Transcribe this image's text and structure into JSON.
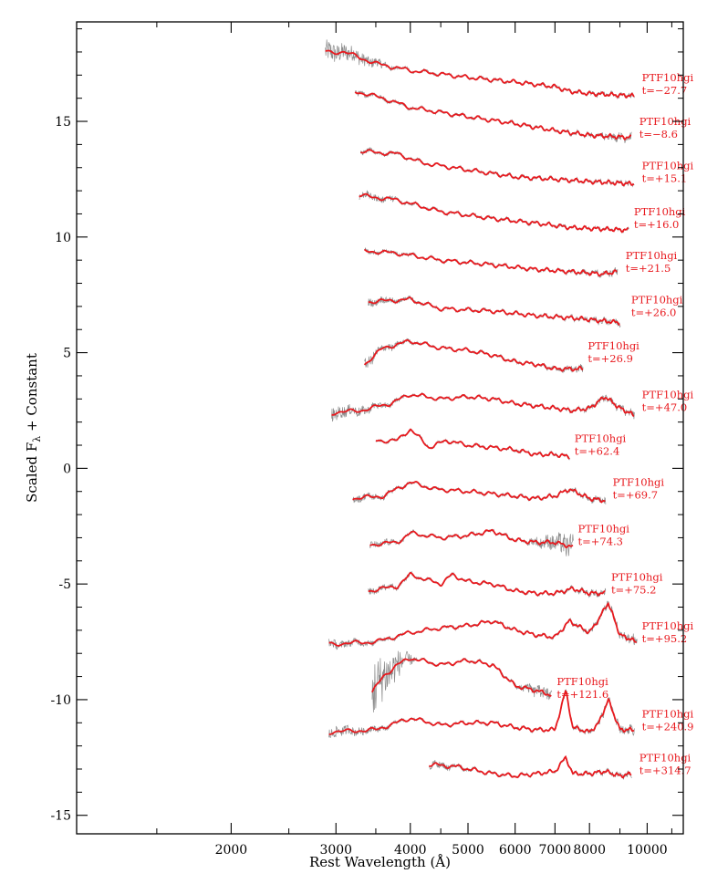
{
  "chart_data": {
    "type": "line",
    "title": "",
    "xlabel": "Rest Wavelength (Å)",
    "ylabel": "Scaled F",
    "ylabel_sub": "λ",
    "ylabel_suffix": " + Constant",
    "xscale": "log",
    "xlim": [
      1100,
      11500
    ],
    "ylim": [
      -15.8,
      19.3
    ],
    "x_ticks": [
      {
        "value": 2000,
        "label": "2000"
      },
      {
        "value": 3000,
        "label": "3000"
      },
      {
        "value": 4000,
        "label": "4000"
      },
      {
        "value": 5000,
        "label": "5000"
      },
      {
        "value": 6000,
        "label": "6000"
      },
      {
        "value": 7000,
        "label": "7000"
      },
      {
        "value": 8000,
        "label": "8000"
      },
      {
        "value": 10000,
        "label": "10000"
      }
    ],
    "y_ticks": [
      {
        "value": 15,
        "label": "15"
      },
      {
        "value": 10,
        "label": "10"
      },
      {
        "value": 5,
        "label": "5"
      },
      {
        "value": 0,
        "label": "0"
      },
      {
        "value": -5,
        "label": "-5"
      },
      {
        "value": -10,
        "label": "-10"
      },
      {
        "value": -15,
        "label": "-15"
      }
    ],
    "raw_color": "#8c8c8c",
    "smooth_color": "#e8191e",
    "series": [
      {
        "object": "PTF10hgi",
        "epoch": "t=−27.7",
        "wmin": 2880,
        "wmax": 9500,
        "noise_lo": 0.45,
        "noise_hi": 0.05,
        "points": [
          [
            2880,
            18.0
          ],
          [
            3100,
            18.0
          ],
          [
            3500,
            17.5
          ],
          [
            4000,
            17.2
          ],
          [
            5000,
            16.9
          ],
          [
            6000,
            16.7
          ],
          [
            7000,
            16.5
          ],
          [
            7400,
            16.3
          ],
          [
            8000,
            16.2
          ],
          [
            9500,
            16.1
          ]
        ],
        "label_w": 9800,
        "label_y": 16.5
      },
      {
        "object": "PTF10hgi",
        "epoch": "t=−8.6",
        "wmin": 3230,
        "wmax": 9400,
        "noise_lo": 0.06,
        "noise_hi": 0.12,
        "points": [
          [
            3230,
            16.3
          ],
          [
            3600,
            16.0
          ],
          [
            4000,
            15.6
          ],
          [
            5000,
            15.2
          ],
          [
            6000,
            14.9
          ],
          [
            7000,
            14.6
          ],
          [
            8000,
            14.4
          ],
          [
            9400,
            14.3
          ]
        ],
        "label_w": 9700,
        "label_y": 14.6
      },
      {
        "object": "PTF10hgi",
        "epoch": "t=+15.1",
        "wmin": 3300,
        "wmax": 9500,
        "noise_lo": 0.05,
        "noise_hi": 0.05,
        "points": [
          [
            3300,
            13.7
          ],
          [
            3800,
            13.6
          ],
          [
            4200,
            13.2
          ],
          [
            5000,
            12.9
          ],
          [
            6000,
            12.6
          ],
          [
            7000,
            12.5
          ],
          [
            8000,
            12.4
          ],
          [
            9500,
            12.3
          ]
        ],
        "label_w": 9800,
        "label_y": 12.7
      },
      {
        "object": "PTF10hgi",
        "epoch": "t=+16.0",
        "wmin": 3280,
        "wmax": 9300,
        "noise_lo": 0.12,
        "noise_hi": 0.0,
        "points": [
          [
            3280,
            11.8
          ],
          [
            3800,
            11.6
          ],
          [
            4500,
            11.1
          ],
          [
            5500,
            10.8
          ],
          [
            6500,
            10.6
          ],
          [
            7500,
            10.4
          ],
          [
            9300,
            10.3
          ]
        ],
        "label_w": 9500,
        "label_y": 10.7
      },
      {
        "object": "PTF10hgi",
        "epoch": "t=+21.5",
        "wmin": 3350,
        "wmax": 8900,
        "noise_lo": 0.06,
        "noise_hi": 0.1,
        "points": [
          [
            3350,
            9.4
          ],
          [
            3800,
            9.3
          ],
          [
            4500,
            9.0
          ],
          [
            5500,
            8.8
          ],
          [
            6500,
            8.6
          ],
          [
            7500,
            8.5
          ],
          [
            8400,
            8.4
          ],
          [
            8900,
            8.5
          ]
        ],
        "label_w": 9200,
        "label_y": 8.8
      },
      {
        "object": "PTF10hgi",
        "epoch": "t=+26.0",
        "wmin": 3400,
        "wmax": 9000,
        "noise_lo": 0.12,
        "noise_hi": 0.1,
        "points": [
          [
            3400,
            7.2
          ],
          [
            4000,
            7.3
          ],
          [
            4500,
            6.9
          ],
          [
            5500,
            6.8
          ],
          [
            6500,
            6.6
          ],
          [
            7500,
            6.5
          ],
          [
            9000,
            6.3
          ]
        ],
        "label_w": 9400,
        "label_y": 6.9
      },
      {
        "object": "PTF10hgi",
        "epoch": "t=+26.9",
        "wmin": 3350,
        "wmax": 7800,
        "noise_lo": 0.2,
        "noise_hi": 0.1,
        "points": [
          [
            3350,
            4.5
          ],
          [
            3600,
            5.2
          ],
          [
            4000,
            5.5
          ],
          [
            4500,
            5.2
          ],
          [
            5000,
            5.1
          ],
          [
            5500,
            4.9
          ],
          [
            6000,
            4.6
          ],
          [
            6500,
            4.5
          ],
          [
            7000,
            4.3
          ],
          [
            7800,
            4.3
          ]
        ],
        "label_w": 7950,
        "label_y": 4.9
      },
      {
        "object": "PTF10hgi",
        "epoch": "t=+47.0",
        "wmin": 2950,
        "wmax": 9500,
        "noise_lo": 0.25,
        "noise_hi": 0.12,
        "points": [
          [
            2950,
            2.4
          ],
          [
            3300,
            2.5
          ],
          [
            3700,
            2.8
          ],
          [
            4000,
            3.2
          ],
          [
            4500,
            3.0
          ],
          [
            5000,
            3.1
          ],
          [
            5500,
            3.0
          ],
          [
            6000,
            2.8
          ],
          [
            6500,
            2.7
          ],
          [
            7000,
            2.6
          ],
          [
            7500,
            2.5
          ],
          [
            8000,
            2.6
          ],
          [
            8500,
            3.1
          ],
          [
            9000,
            2.6
          ],
          [
            9500,
            2.3
          ]
        ],
        "label_w": 9800,
        "label_y": 2.8
      },
      {
        "object": "PTF10hgi",
        "epoch": "t=+62.4",
        "wmin": 3500,
        "wmax": 7400,
        "noise_lo": 0.0,
        "noise_hi": 0.0,
        "points": [
          [
            3500,
            1.2
          ],
          [
            3800,
            1.2
          ],
          [
            4000,
            1.7
          ],
          [
            4300,
            0.9
          ],
          [
            4600,
            1.2
          ],
          [
            5000,
            1.0
          ],
          [
            5500,
            0.9
          ],
          [
            6000,
            0.8
          ],
          [
            6500,
            0.6
          ],
          [
            7000,
            0.6
          ],
          [
            7400,
            0.5
          ]
        ],
        "label_w": 7550,
        "label_y": 0.9
      },
      {
        "object": "PTF10hgi",
        "epoch": "t=+69.7",
        "wmin": 3200,
        "wmax": 8500,
        "noise_lo": 0.12,
        "noise_hi": 0.1,
        "points": [
          [
            3200,
            -1.3
          ],
          [
            3600,
            -1.2
          ],
          [
            4000,
            -0.6
          ],
          [
            4400,
            -0.9
          ],
          [
            5000,
            -1.0
          ],
          [
            5500,
            -1.1
          ],
          [
            6000,
            -1.2
          ],
          [
            6500,
            -1.3
          ],
          [
            7000,
            -1.2
          ],
          [
            7400,
            -0.9
          ],
          [
            8000,
            -1.3
          ],
          [
            8500,
            -1.4
          ]
        ],
        "label_w": 8750,
        "label_y": -1.0
      },
      {
        "object": "PTF10hgi",
        "epoch": "t=+74.3",
        "wmin": 3420,
        "wmax": 7500,
        "noise_lo": 0.12,
        "noise_hi": 0.5,
        "points": [
          [
            3420,
            -3.3
          ],
          [
            3800,
            -3.2
          ],
          [
            4000,
            -2.8
          ],
          [
            4500,
            -3.0
          ],
          [
            5000,
            -2.9
          ],
          [
            5500,
            -2.7
          ],
          [
            6000,
            -3.1
          ],
          [
            6500,
            -3.2
          ],
          [
            7000,
            -3.2
          ],
          [
            7500,
            -3.4
          ]
        ],
        "label_w": 7650,
        "label_y": -3.0
      },
      {
        "object": "PTF10hgi",
        "epoch": "t=+75.2",
        "wmin": 3400,
        "wmax": 8500,
        "noise_lo": 0.1,
        "noise_hi": 0.1,
        "points": [
          [
            3400,
            -5.3
          ],
          [
            3800,
            -5.1
          ],
          [
            4000,
            -4.6
          ],
          [
            4500,
            -5.0
          ],
          [
            4700,
            -4.6
          ],
          [
            5000,
            -4.9
          ],
          [
            5500,
            -5.0
          ],
          [
            6000,
            -5.3
          ],
          [
            6500,
            -5.4
          ],
          [
            7000,
            -5.4
          ],
          [
            7500,
            -5.2
          ],
          [
            8000,
            -5.4
          ],
          [
            8500,
            -5.4
          ]
        ],
        "label_w": 8700,
        "label_y": -5.1
      },
      {
        "object": "PTF10hgi",
        "epoch": "t=+95.2",
        "wmin": 2920,
        "wmax": 9600,
        "noise_lo": 0.15,
        "noise_hi": 0.18,
        "points": [
          [
            2920,
            -7.6
          ],
          [
            3500,
            -7.5
          ],
          [
            4000,
            -7.1
          ],
          [
            4500,
            -6.9
          ],
          [
            5000,
            -6.8
          ],
          [
            5500,
            -6.6
          ],
          [
            6000,
            -7.0
          ],
          [
            6500,
            -7.2
          ],
          [
            7000,
            -7.3
          ],
          [
            7400,
            -6.6
          ],
          [
            8000,
            -7.1
          ],
          [
            8300,
            -6.5
          ],
          [
            8600,
            -5.8
          ],
          [
            9000,
            -7.2
          ],
          [
            9600,
            -7.5
          ]
        ],
        "label_w": 9800,
        "label_y": -7.2
      },
      {
        "object": "PTF10hgi",
        "epoch": "t=+121.6",
        "wmin": 3450,
        "wmax": 6900,
        "noise_lo": 1.3,
        "noise_hi": 0.3,
        "points": [
          [
            3450,
            -9.7
          ],
          [
            3600,
            -9.0
          ],
          [
            3800,
            -8.5
          ],
          [
            4000,
            -8.2
          ],
          [
            4500,
            -8.5
          ],
          [
            5000,
            -8.3
          ],
          [
            5500,
            -8.5
          ],
          [
            6000,
            -9.4
          ],
          [
            6500,
            -9.6
          ],
          [
            6900,
            -9.8
          ]
        ],
        "label_w": 7050,
        "label_y": -9.6
      },
      {
        "object": "PTF10hgi",
        "epoch": "t=+240.9",
        "wmin": 2920,
        "wmax": 9500,
        "noise_lo": 0.2,
        "noise_hi": 0.15,
        "points": [
          [
            2920,
            -11.4
          ],
          [
            3500,
            -11.3
          ],
          [
            4000,
            -10.8
          ],
          [
            4500,
            -11.1
          ],
          [
            5000,
            -11.0
          ],
          [
            5500,
            -11.0
          ],
          [
            6000,
            -11.2
          ],
          [
            6500,
            -11.3
          ],
          [
            7000,
            -11.3
          ],
          [
            7300,
            -9.6
          ],
          [
            7500,
            -11.2
          ],
          [
            8000,
            -11.4
          ],
          [
            8300,
            -11.0
          ],
          [
            8600,
            -10.0
          ],
          [
            9000,
            -11.3
          ],
          [
            9500,
            -11.3
          ]
        ],
        "label_w": 9800,
        "label_y": -11.0
      },
      {
        "object": "PTF10hgi",
        "epoch": "t=+314.7",
        "wmin": 4300,
        "wmax": 9400,
        "noise_lo": 0.12,
        "noise_hi": 0.08,
        "points": [
          [
            4300,
            -12.8
          ],
          [
            4800,
            -12.9
          ],
          [
            5500,
            -13.2
          ],
          [
            6000,
            -13.3
          ],
          [
            6500,
            -13.2
          ],
          [
            7000,
            -13.1
          ],
          [
            7300,
            -12.5
          ],
          [
            7500,
            -13.2
          ],
          [
            8000,
            -13.2
          ],
          [
            8500,
            -13.1
          ],
          [
            9000,
            -13.3
          ],
          [
            9400,
            -13.2
          ]
        ],
        "label_w": 9700,
        "label_y": -12.9
      }
    ]
  }
}
